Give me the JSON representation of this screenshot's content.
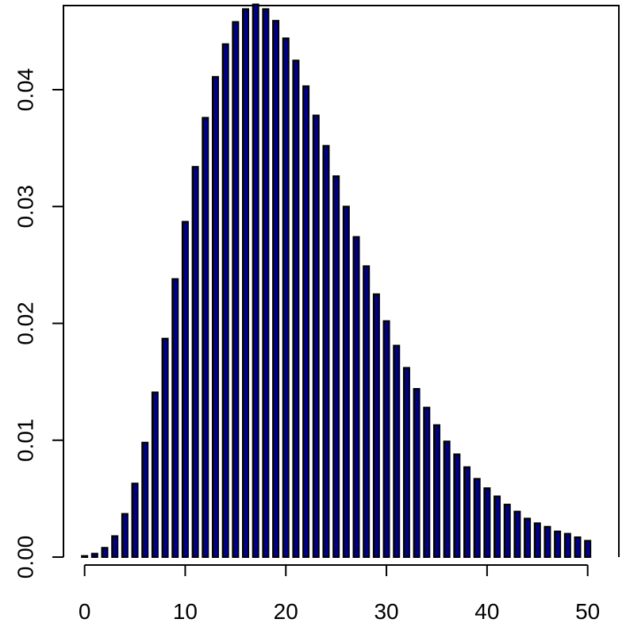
{
  "chart_data": {
    "type": "bar",
    "x": [
      0,
      1,
      2,
      3,
      4,
      5,
      6,
      7,
      8,
      9,
      10,
      11,
      12,
      13,
      14,
      15,
      16,
      17,
      18,
      19,
      20,
      21,
      22,
      23,
      24,
      25,
      26,
      27,
      28,
      29,
      30,
      31,
      32,
      33,
      34,
      35,
      36,
      37,
      38,
      39,
      40,
      41,
      42,
      43,
      44,
      45,
      46,
      47,
      48,
      49,
      50
    ],
    "values": [
      0.0001,
      0.0003,
      0.0008,
      0.0018,
      0.0037,
      0.0063,
      0.0098,
      0.0141,
      0.0187,
      0.0238,
      0.0287,
      0.0334,
      0.0376,
      0.0411,
      0.0439,
      0.0458,
      0.0469,
      0.0473,
      0.0469,
      0.0459,
      0.0444,
      0.0425,
      0.0403,
      0.0378,
      0.0352,
      0.0326,
      0.03,
      0.0274,
      0.0249,
      0.0225,
      0.0202,
      0.0181,
      0.0162,
      0.0144,
      0.0128,
      0.0113,
      0.0099,
      0.0088,
      0.0077,
      0.0067,
      0.0059,
      0.0052,
      0.0045,
      0.0039,
      0.0033,
      0.0029,
      0.0026,
      0.0022,
      0.002,
      0.0017,
      0.0014
    ],
    "color": "#000080",
    "xlim": [
      -2.1,
      53.1
    ],
    "ylim": [
      0,
      0.0472
    ],
    "xticks": [
      0,
      10,
      20,
      30,
      40,
      50
    ],
    "yticks": [
      {
        "value": 0,
        "label": "0.00"
      },
      {
        "value": 0.01,
        "label": "0.01"
      },
      {
        "value": 0.02,
        "label": "0.02"
      },
      {
        "value": 0.03,
        "label": "0.03"
      },
      {
        "value": 0.04,
        "label": "0.04"
      }
    ]
  }
}
